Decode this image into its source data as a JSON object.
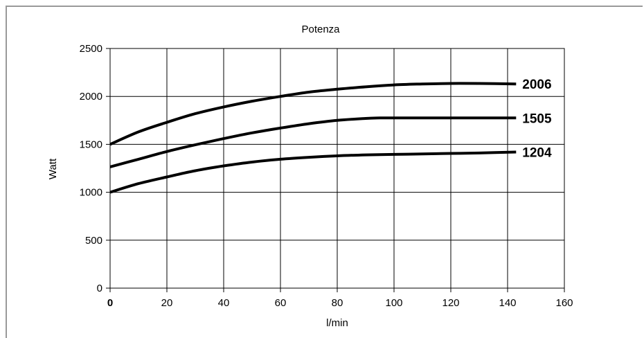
{
  "chart_data": {
    "type": "line",
    "title": "Potenza",
    "xlabel": "l/min",
    "ylabel": "Watt",
    "xlim": [
      0,
      160
    ],
    "ylim": [
      0,
      2500
    ],
    "xticks": [
      0,
      20,
      40,
      60,
      80,
      100,
      120,
      140,
      160
    ],
    "yticks": [
      0,
      500,
      1000,
      1500,
      2000,
      2500
    ],
    "grid": true,
    "legend": "inline-right",
    "line_color": "#000000",
    "series": [
      {
        "name": "2006",
        "x": [
          0,
          10,
          20,
          30,
          40,
          50,
          60,
          70,
          80,
          90,
          100,
          110,
          120,
          130,
          143
        ],
        "y": [
          1500,
          1630,
          1730,
          1820,
          1890,
          1950,
          2000,
          2045,
          2075,
          2100,
          2120,
          2130,
          2135,
          2135,
          2130
        ]
      },
      {
        "name": "1505",
        "x": [
          0,
          10,
          20,
          30,
          40,
          50,
          60,
          70,
          80,
          90,
          95,
          100,
          110,
          120,
          130,
          143
        ],
        "y": [
          1265,
          1345,
          1425,
          1495,
          1560,
          1620,
          1670,
          1715,
          1750,
          1770,
          1775,
          1775,
          1775,
          1775,
          1775,
          1775
        ]
      },
      {
        "name": "1204",
        "x": [
          0,
          10,
          20,
          30,
          40,
          50,
          60,
          70,
          80,
          90,
          100,
          110,
          120,
          130,
          143
        ],
        "y": [
          1000,
          1090,
          1160,
          1225,
          1275,
          1315,
          1345,
          1365,
          1380,
          1390,
          1395,
          1400,
          1405,
          1410,
          1420
        ]
      }
    ]
  }
}
